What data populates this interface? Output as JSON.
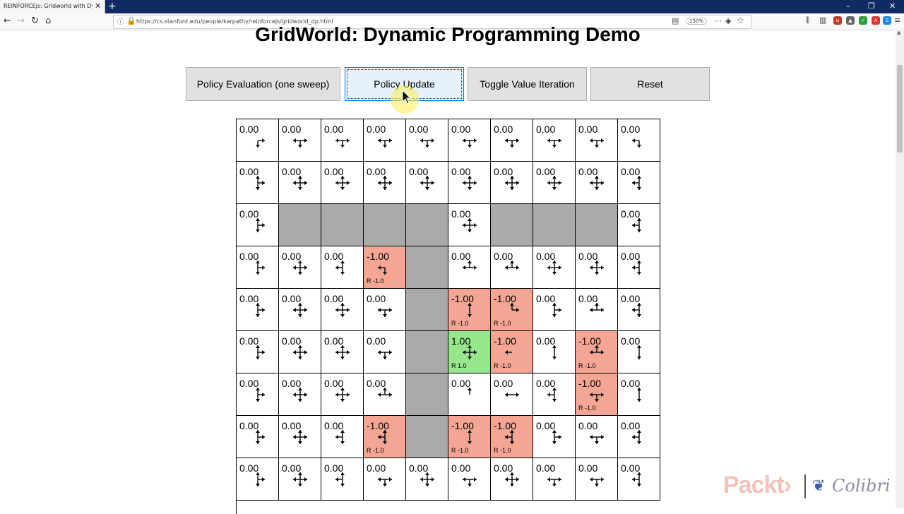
{
  "browser": {
    "tab_title": "REINFORCEjs: Gridworld with Dyna...",
    "url": "https://cs.stanford.edu/people/karpathy/reinforcejs/gridworld_dp.html",
    "zoom": "150%"
  },
  "page": {
    "title": "GridWorld: Dynamic Programming Demo",
    "buttons": {
      "policy_eval": "Policy Evaluation (one sweep)",
      "policy_update": "Policy Update",
      "toggle_vi": "Toggle Value Iteration",
      "reset": "Reset"
    }
  },
  "grid": {
    "cols": 10,
    "rows": [
      [
        "0.00",
        "0.00",
        "0.00",
        "0.00",
        "0.00",
        "0.00",
        "0.00",
        "0.00",
        "0.00",
        "0.00"
      ],
      [
        "0.00",
        "0.00",
        "0.00",
        "0.00",
        "0.00",
        "0.00",
        "0.00",
        "0.00",
        "0.00",
        "0.00"
      ],
      [
        "0.00",
        "W",
        "W",
        "W",
        "W",
        "0.00",
        "W",
        "W",
        "W",
        "0.00"
      ],
      [
        "0.00",
        "0.00",
        "0.00",
        "-1.00",
        "W",
        "0.00",
        "0.00",
        "0.00",
        "0.00",
        "0.00"
      ],
      [
        "0.00",
        "0.00",
        "0.00",
        "0.00",
        "W",
        "-1.00",
        "-1.00",
        "0.00",
        "0.00",
        "0.00"
      ],
      [
        "0.00",
        "0.00",
        "0.00",
        "0.00",
        "W",
        "1.00",
        "-1.00",
        "0.00",
        "-1.00",
        "0.00"
      ],
      [
        "0.00",
        "0.00",
        "0.00",
        "0.00",
        "W",
        "0.00",
        "0.00",
        "0.00",
        "-1.00",
        "0.00"
      ],
      [
        "0.00",
        "0.00",
        "0.00",
        "-1.00",
        "W",
        "-1.00",
        "-1.00",
        "0.00",
        "0.00",
        "0.00"
      ],
      [
        "0.00",
        "0.00",
        "0.00",
        "0.00",
        "0.00",
        "0.00",
        "0.00",
        "0.00",
        "0.00",
        "0.00"
      ]
    ],
    "policy": [
      [
        "rd",
        "lrd",
        "lrd",
        "lrd",
        "lrd",
        "lrd",
        "lrd",
        "lrd",
        "lrd",
        "ld"
      ],
      [
        "urd",
        "lurd",
        "lurd",
        "lurd",
        "lurd",
        "lurd",
        "lurd",
        "lurd",
        "lurd",
        "uld"
      ],
      [
        "urd",
        "",
        "",
        "",
        "",
        "lurd",
        "",
        "",
        "",
        "uld"
      ],
      [
        "urd",
        "lurd",
        "uld",
        "ld",
        "",
        "lur",
        "lur",
        "lurd",
        "lurd",
        "uld"
      ],
      [
        "urd",
        "lurd",
        "lurd",
        "lrd",
        "",
        "ud",
        "ur",
        "urd",
        "lur",
        "uld"
      ],
      [
        "urd",
        "lurd",
        "lurd",
        "lrd",
        "",
        "lurd",
        "l",
        "ud",
        "lur",
        "ud"
      ],
      [
        "urd",
        "lurd",
        "lurd",
        "lur",
        "",
        "u",
        "lr",
        "uld",
        "lrd",
        "ud"
      ],
      [
        "urd",
        "lurd",
        "uld",
        "uld",
        "",
        "ud",
        "uld",
        "urd",
        "lrd",
        "uld"
      ],
      [
        "urd",
        "lurd",
        "uld",
        "lrd",
        "lurd",
        "lrd",
        "lurd",
        "lrd",
        "lrd",
        "uld"
      ]
    ],
    "rewards": [
      {
        "r": 3,
        "c": 3,
        "label": "R -1.0"
      },
      {
        "r": 4,
        "c": 5,
        "label": "R -1.0"
      },
      {
        "r": 4,
        "c": 6,
        "label": "R -1.0"
      },
      {
        "r": 5,
        "c": 5,
        "label": "R 1.0"
      },
      {
        "r": 5,
        "c": 6,
        "label": "R -1.0"
      },
      {
        "r": 5,
        "c": 8,
        "label": "R -1.0"
      },
      {
        "r": 6,
        "c": 8,
        "label": "R -1.0"
      },
      {
        "r": 7,
        "c": 3,
        "label": "R -1.0"
      },
      {
        "r": 7,
        "c": 5,
        "label": "R -1.0"
      },
      {
        "r": 7,
        "c": 6,
        "label": "R -1.0"
      }
    ]
  },
  "watermark": {
    "packt": "Packt›",
    "colibri": "Colibri"
  }
}
